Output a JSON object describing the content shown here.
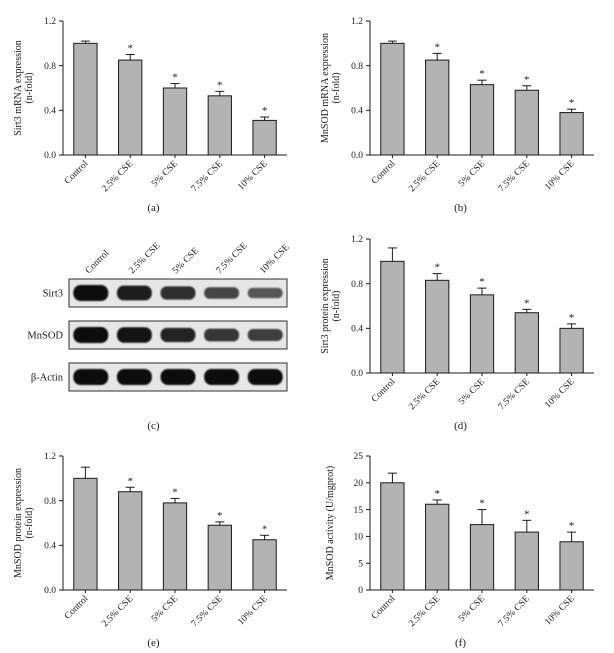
{
  "colors": {
    "bar_fill": "#b3b3b3",
    "bar_edge": "#1a1a1a",
    "axis_color": "#1a1a1a",
    "band_color": "#0d0d0d",
    "blot_box_bg": "#e6e6e6"
  },
  "chart_data": [
    {
      "type": "bar",
      "panel_label": "(a)",
      "ylabel_lines": [
        "Sirt3 mRNA expression",
        "(n-fold)"
      ],
      "categories": [
        "Control",
        "2.5% CSE",
        "5% CSE",
        "7.5% CSE",
        "10% CSE"
      ],
      "values": [
        1.0,
        0.85,
        0.6,
        0.53,
        0.31
      ],
      "errors": [
        0.02,
        0.05,
        0.04,
        0.04,
        0.03
      ],
      "significance": [
        "",
        "*",
        "*",
        "*",
        "*"
      ],
      "ylim": [
        0,
        1.2
      ],
      "yticks": [
        0,
        0.4,
        0.8,
        1.2
      ],
      "ytick_labels": [
        "0.0",
        "0.4",
        "0.8",
        "1.2"
      ]
    },
    {
      "type": "bar",
      "panel_label": "(b)",
      "ylabel_lines": [
        "MnSOD mRNA expression",
        "(n-fold)"
      ],
      "categories": [
        "Control",
        "2.5% CSE",
        "5% CSE",
        "7.5% CSE",
        "10% CSE"
      ],
      "values": [
        1.0,
        0.85,
        0.63,
        0.58,
        0.38
      ],
      "errors": [
        0.02,
        0.06,
        0.04,
        0.04,
        0.03
      ],
      "significance": [
        "",
        "*",
        "*",
        "*",
        "*"
      ],
      "ylim": [
        0,
        1.2
      ],
      "yticks": [
        0,
        0.4,
        0.8,
        1.2
      ],
      "ytick_labels": [
        "0.0",
        "0.4",
        "0.8",
        "1.2"
      ]
    },
    {
      "type": "bar",
      "panel_label": "(d)",
      "ylabel_lines": [
        "Sirt3 protein expression",
        "(n-fold)"
      ],
      "categories": [
        "Control",
        "2.5% CSE",
        "5% CSE",
        "7.5% CSE",
        "10% CSE"
      ],
      "values": [
        1.0,
        0.83,
        0.7,
        0.54,
        0.4
      ],
      "errors": [
        0.12,
        0.06,
        0.06,
        0.03,
        0.04
      ],
      "significance": [
        "",
        "*",
        "*",
        "*",
        "*"
      ],
      "ylim": [
        0,
        1.2
      ],
      "yticks": [
        0,
        0.4,
        0.8,
        1.2
      ],
      "ytick_labels": [
        "0.0",
        "0.4",
        "0.8",
        "1.2"
      ]
    },
    {
      "type": "bar",
      "panel_label": "(e)",
      "ylabel_lines": [
        "MnSOD protein expression",
        "(n-fold)"
      ],
      "categories": [
        "Control",
        "2.5% CSE",
        "5% CSE",
        "7.5% CSE",
        "10% CSE"
      ],
      "values": [
        1.0,
        0.88,
        0.78,
        0.58,
        0.45
      ],
      "errors": [
        0.1,
        0.04,
        0.04,
        0.03,
        0.04
      ],
      "significance": [
        "",
        "*",
        "*",
        "*",
        "*"
      ],
      "ylim": [
        0,
        1.2
      ],
      "yticks": [
        0,
        0.4,
        0.8,
        1.2
      ],
      "ytick_labels": [
        "0.0",
        "0.4",
        "0.8",
        "1.2"
      ]
    },
    {
      "type": "bar",
      "panel_label": "(f)",
      "ylabel_lines": [
        "MnSOD activity (U/mgprot)"
      ],
      "categories": [
        "Control",
        "2.5% CSE",
        "5% CSE",
        "7.5% CSE",
        "10% CSE"
      ],
      "values": [
        20,
        16,
        12.2,
        10.8,
        9
      ],
      "errors": [
        1.8,
        0.8,
        2.8,
        2.2,
        1.8
      ],
      "significance": [
        "",
        "*",
        "*",
        "*",
        "*"
      ],
      "ylim": [
        0,
        25
      ],
      "yticks": [
        0,
        5,
        10,
        15,
        20,
        25
      ],
      "ytick_labels": [
        "0",
        "5",
        "10",
        "15",
        "20",
        "25"
      ]
    }
  ],
  "western_blot": {
    "panel_label": "(c)",
    "col_labels": [
      "Control",
      "2.5% CSE",
      "5% CSE",
      "7.5% CSE",
      "10% CSE"
    ],
    "rows": [
      {
        "name": "Sirt3",
        "bands": [
          1.0,
          0.85,
          0.7,
          0.5,
          0.35
        ]
      },
      {
        "name": "MnSOD",
        "bands": [
          1.0,
          0.95,
          0.8,
          0.65,
          0.55
        ]
      },
      {
        "name": "β-Actin",
        "bands": [
          1.0,
          1.0,
          1.0,
          1.0,
          1.0
        ]
      }
    ]
  }
}
